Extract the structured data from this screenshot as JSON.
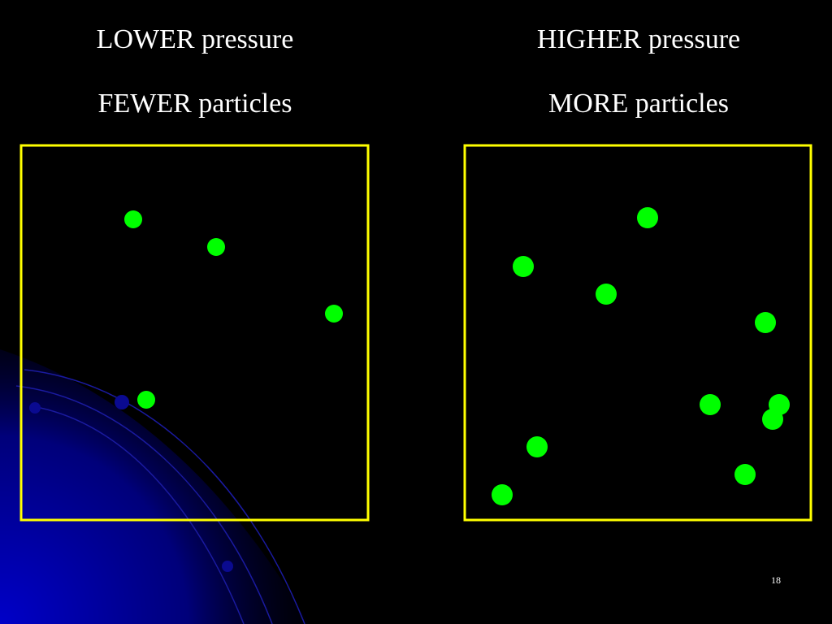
{
  "left": {
    "title": "LOWER pressure",
    "subtitle": "FEWER particles"
  },
  "right": {
    "title": "HIGHER pressure",
    "subtitle": "MORE particles"
  },
  "slide_number": "18"
}
